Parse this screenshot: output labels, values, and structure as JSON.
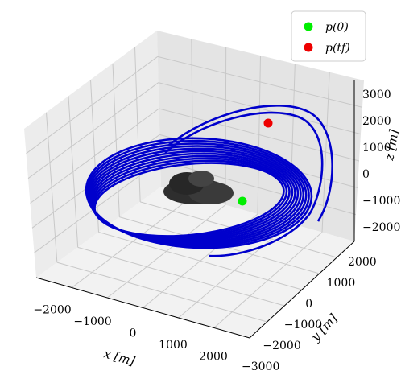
{
  "chart_data": {
    "type": "line",
    "projection": "3d",
    "title": "",
    "xlabel": "x [m]",
    "ylabel": "y [m]",
    "zlabel": "z [m]",
    "xlim": [
      -2500,
      2500
    ],
    "ylim": [
      -3000,
      2500
    ],
    "zlim": [
      -2500,
      3200
    ],
    "x_ticks": [
      "−2000",
      "−1000",
      "0",
      "1000",
      "2000"
    ],
    "y_ticks": [
      "−3000",
      "−2000",
      "−1000",
      "0",
      "1000",
      "2000"
    ],
    "z_ticks": [
      "−2000",
      "−1000",
      "0",
      "1000",
      "2000",
      "3000"
    ],
    "grid": true,
    "legend": {
      "placement": "top-right",
      "entries": [
        {
          "label": "p(0)",
          "color": "#00ee00",
          "marker": "circle"
        },
        {
          "label": "p(tf)",
          "color": "#ee0000",
          "marker": "circle"
        }
      ]
    },
    "trajectory": {
      "color": "#0000cc",
      "loops": 11,
      "radius_x": 2400,
      "radius_y": 2300,
      "z_range": [
        -400,
        2100
      ]
    },
    "start_point": {
      "x": 1500,
      "y": -900,
      "z": -200
    },
    "end_point": {
      "x": 600,
      "y": 2100,
      "z": 2000
    },
    "body": {
      "name": "asteroid",
      "color": "#333333"
    }
  }
}
